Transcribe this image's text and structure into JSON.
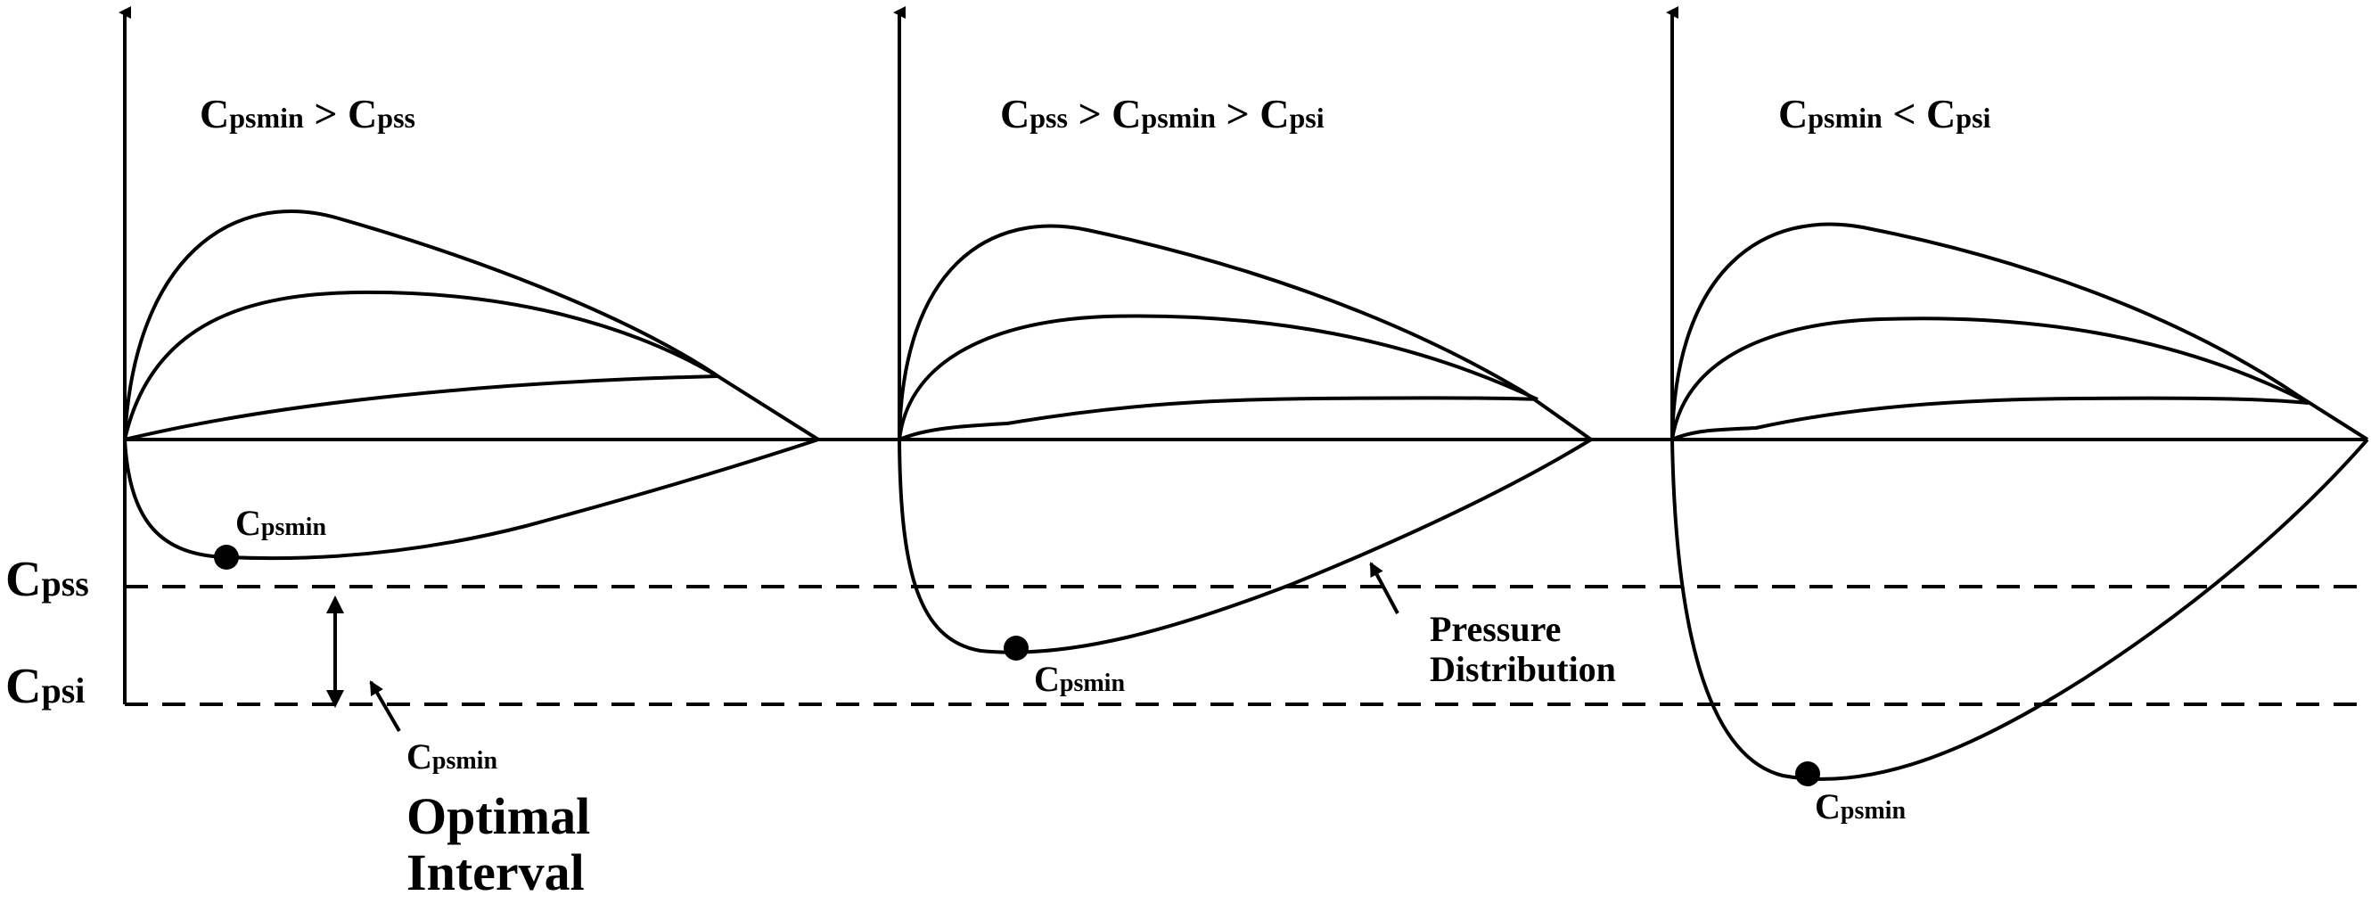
{
  "panels": [
    {
      "title": [
        {
          "base": "C",
          "sub": "psmin"
        },
        {
          "op": " > "
        },
        {
          "base": "C",
          "sub": "pss"
        }
      ],
      "min_label": {
        "base": "C",
        "sub": "psmin"
      }
    },
    {
      "title": [
        {
          "base": "C",
          "sub": "pss"
        },
        {
          "op": " > "
        },
        {
          "base": "C",
          "sub": "psmin"
        },
        {
          "op": " > "
        },
        {
          "base": "C",
          "sub": "psi"
        }
      ],
      "min_label": {
        "base": "C",
        "sub": "psmin"
      }
    },
    {
      "title": [
        {
          "base": "C",
          "sub": "psmin"
        },
        {
          "op": " < "
        },
        {
          "base": "C",
          "sub": "psi"
        }
      ],
      "min_label": {
        "base": "C",
        "sub": "psmin"
      }
    }
  ],
  "levels": {
    "upper": {
      "base": "C",
      "sub": "pss"
    },
    "lower": {
      "base": "C",
      "sub": "psi"
    }
  },
  "interval_annotation": {
    "label": {
      "base": "C",
      "sub": "psmin"
    },
    "line1": "Optimal",
    "line2": "Interval"
  },
  "curve_annotation": {
    "line1": "Pressure",
    "line2": "Distribution"
  }
}
